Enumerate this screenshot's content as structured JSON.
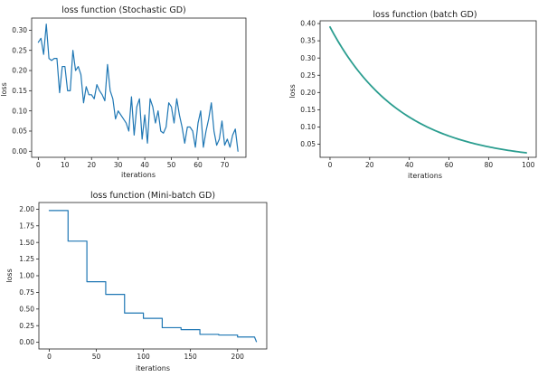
{
  "chart_data": [
    {
      "id": "sgd",
      "type": "line",
      "title": "loss function (Stochastic GD)",
      "xlabel": "iterations",
      "ylabel": "loss",
      "xlim": [
        -2.5,
        78
      ],
      "ylim": [
        -0.015,
        0.33
      ],
      "xticks": [
        0,
        10,
        20,
        30,
        40,
        50,
        60,
        70
      ],
      "xtick_labels": [
        "0",
        "10",
        "20",
        "30",
        "40",
        "50",
        "60",
        "70"
      ],
      "yticks": [
        0.0,
        0.05,
        0.1,
        0.15,
        0.2,
        0.25,
        0.3
      ],
      "ytick_labels": [
        "0.00",
        "0.05",
        "0.10",
        "0.15",
        "0.20",
        "0.25",
        "0.30"
      ],
      "grid": false,
      "color": "#1f77b4",
      "x": [
        0,
        1,
        2,
        3,
        4,
        5,
        6,
        7,
        8,
        9,
        10,
        11,
        12,
        13,
        14,
        15,
        16,
        17,
        18,
        19,
        20,
        21,
        22,
        23,
        24,
        25,
        26,
        27,
        28,
        29,
        30,
        31,
        32,
        33,
        34,
        35,
        36,
        37,
        38,
        39,
        40,
        41,
        42,
        43,
        44,
        45,
        46,
        47,
        48,
        49,
        50,
        51,
        52,
        53,
        54,
        55,
        56,
        57,
        58,
        59,
        60,
        61,
        62,
        63,
        64,
        65,
        66,
        67,
        68,
        69,
        70,
        71,
        72,
        73,
        74,
        75
      ],
      "y": [
        0.27,
        0.28,
        0.24,
        0.315,
        0.23,
        0.225,
        0.23,
        0.23,
        0.145,
        0.21,
        0.21,
        0.15,
        0.15,
        0.25,
        0.2,
        0.21,
        0.19,
        0.12,
        0.16,
        0.14,
        0.14,
        0.13,
        0.165,
        0.15,
        0.14,
        0.125,
        0.215,
        0.15,
        0.13,
        0.08,
        0.1,
        0.09,
        0.08,
        0.07,
        0.05,
        0.135,
        0.04,
        0.11,
        0.13,
        0.03,
        0.09,
        0.02,
        0.13,
        0.11,
        0.07,
        0.1,
        0.05,
        0.045,
        0.06,
        0.12,
        0.11,
        0.07,
        0.13,
        0.09,
        0.06,
        0.02,
        0.06,
        0.06,
        0.05,
        0.01,
        0.07,
        0.1,
        0.01,
        0.05,
        0.08,
        0.12,
        0.05,
        0.015,
        0.03,
        0.075,
        0.015,
        0.03,
        0.01,
        0.04,
        0.055,
        0.0
      ]
    },
    {
      "id": "batch",
      "type": "line",
      "title": "loss function (batch GD)",
      "xlabel": "iterations",
      "ylabel": "loss",
      "xlim": [
        -5,
        104
      ],
      "ylim": [
        0.012,
        0.408
      ],
      "xticks": [
        0,
        20,
        40,
        60,
        80,
        100
      ],
      "xtick_labels": [
        "0",
        "20",
        "40",
        "60",
        "80",
        "100"
      ],
      "yticks": [
        0.05,
        0.1,
        0.15,
        0.2,
        0.25,
        0.3,
        0.35,
        0.4
      ],
      "ytick_labels": [
        "0.05",
        "0.10",
        "0.15",
        "0.20",
        "0.25",
        "0.30",
        "0.35",
        "0.40"
      ],
      "grid": false,
      "color": "#2a9d8f",
      "curve": {
        "x_start": 0,
        "x_end": 99,
        "y_start": 0.39,
        "y_end": 0.025
      }
    },
    {
      "id": "minibatch",
      "type": "line",
      "title": "loss function (Mini-batch GD)",
      "xlabel": "iterations",
      "ylabel": "loss",
      "xlim": [
        -11,
        231
      ],
      "ylim": [
        -0.1,
        2.1
      ],
      "xticks": [
        0,
        50,
        100,
        150,
        200
      ],
      "xtick_labels": [
        "0",
        "50",
        "100",
        "150",
        "200"
      ],
      "yticks": [
        0.0,
        0.25,
        0.5,
        0.75,
        1.0,
        1.25,
        1.5,
        1.75,
        2.0
      ],
      "ytick_labels": [
        "0.00",
        "0.25",
        "0.50",
        "0.75",
        "1.00",
        "1.25",
        "1.50",
        "1.75",
        "2.00"
      ],
      "grid": false,
      "color": "#1f77b4",
      "x": [
        0,
        20,
        20,
        40,
        40,
        60,
        60,
        80,
        80,
        100,
        100,
        120,
        120,
        140,
        140,
        160,
        160,
        180,
        180,
        200,
        200,
        218,
        220
      ],
      "y": [
        1.98,
        1.98,
        1.52,
        1.52,
        0.91,
        0.91,
        0.72,
        0.72,
        0.44,
        0.44,
        0.36,
        0.36,
        0.22,
        0.22,
        0.19,
        0.19,
        0.12,
        0.12,
        0.11,
        0.11,
        0.08,
        0.08,
        0.01
      ]
    }
  ]
}
